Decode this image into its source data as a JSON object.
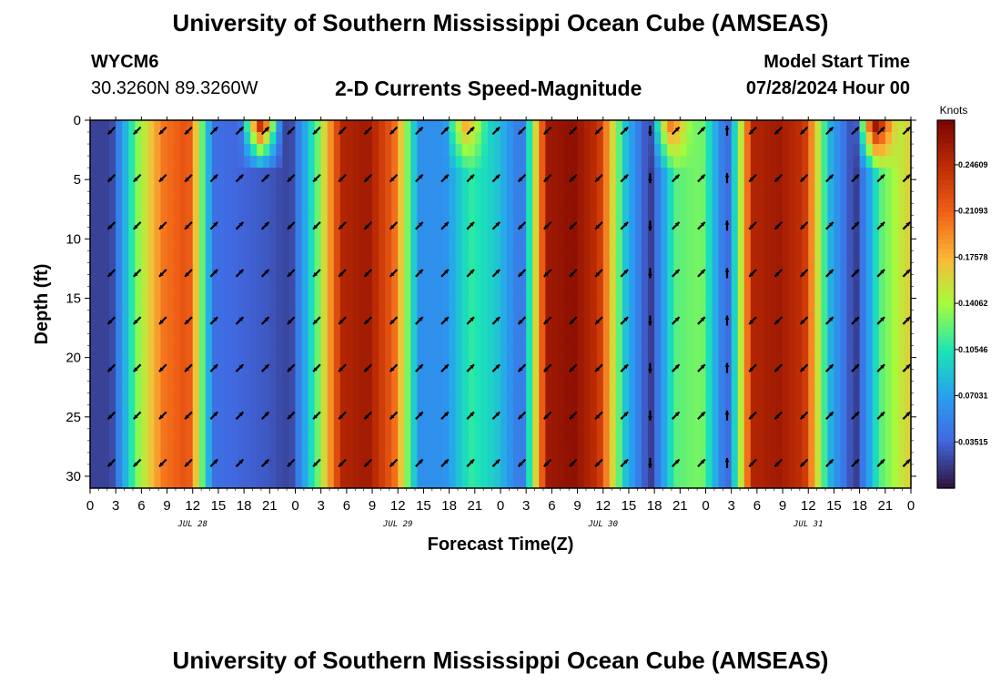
{
  "header": {
    "title": "University of Southern Mississippi Ocean Cube (AMSEAS)",
    "station": "WYCM6",
    "coordinates": "30.3260N  89.3260W",
    "subtitle": "2-D Currents Speed-Magnitude",
    "model_start_label": "Model Start Time",
    "model_start_value": "07/28/2024 Hour 00"
  },
  "footer": {
    "title": "University of Southern Mississippi Ocean Cube (AMSEAS)"
  },
  "chart_data": {
    "type": "heatmap",
    "title": "2-D Currents Speed-Magnitude",
    "xlabel": "Forecast Time(Z)",
    "ylabel": "Depth (ft)",
    "x_ticks": [
      "0",
      "3",
      "6",
      "9",
      "12",
      "15",
      "18",
      "21",
      "0",
      "3",
      "6",
      "9",
      "12",
      "15",
      "18",
      "21",
      "0",
      "3",
      "6",
      "9",
      "12",
      "15",
      "18",
      "21",
      "0",
      "3",
      "6",
      "9",
      "12",
      "15",
      "18",
      "21",
      "0"
    ],
    "x_range_hours": [
      0,
      96
    ],
    "date_labels": [
      {
        "label": "JUL 28",
        "hour": 12
      },
      {
        "label": "JUL 29",
        "hour": 36
      },
      {
        "label": "JUL 30",
        "hour": 60
      },
      {
        "label": "JUL 31",
        "hour": 84
      }
    ],
    "y_ticks": [
      0,
      5,
      10,
      15,
      20,
      25,
      30
    ],
    "ylim": [
      0,
      31
    ],
    "y_inverted": true,
    "colorbar": {
      "unit": "Knots",
      "ticks": [
        "0.03515",
        "0.07031",
        "0.10546",
        "0.14062",
        "0.17578",
        "0.21093",
        "0.24609"
      ],
      "range": [
        0,
        0.28
      ]
    },
    "time_columns_hours": [
      2.5,
      5.5,
      8.5,
      11.5,
      14.5,
      17.5,
      20.5,
      23.5,
      26.5,
      29.5,
      32.5,
      35.5,
      38.5,
      41.5,
      44.5,
      47.5,
      50.5,
      53.5,
      56.5,
      59.5,
      62.5,
      65.5,
      68.5,
      71.5,
      74.5,
      77.5,
      80.5,
      83.5,
      86.5,
      89.5,
      92.5,
      95.5
    ],
    "speed_profile_knots": [
      0.02,
      0.13,
      0.2,
      0.22,
      0.04,
      0.035,
      0.03,
      0.02,
      0.12,
      0.25,
      0.26,
      0.21,
      0.06,
      0.06,
      0.11,
      0.09,
      0.04,
      0.26,
      0.27,
      0.24,
      0.09,
      0.015,
      0.12,
      0.13,
      0.03,
      0.25,
      0.26,
      0.24,
      0.08,
      0.015,
      0.12,
      0.16
    ],
    "surface_peaks": [
      {
        "hour": 20,
        "speed_knots": 0.25
      },
      {
        "hour": 44,
        "speed_knots": 0.18
      },
      {
        "hour": 68,
        "speed_knots": 0.2
      },
      {
        "hour": 92,
        "speed_knots": 0.27
      }
    ],
    "vector_depths_ft": [
      0.5,
      4.5,
      8.5,
      12.5,
      16.5,
      20.5,
      24.5,
      28.5
    ],
    "vector_direction_deg_ccw_from_east": [
      225,
      225,
      225,
      225,
      45,
      45,
      45,
      225,
      225,
      225,
      225,
      225,
      45,
      45,
      45,
      45,
      225,
      225,
      225,
      225,
      45,
      270,
      45,
      45,
      90,
      225,
      225,
      225,
      45,
      45,
      45,
      45
    ]
  }
}
